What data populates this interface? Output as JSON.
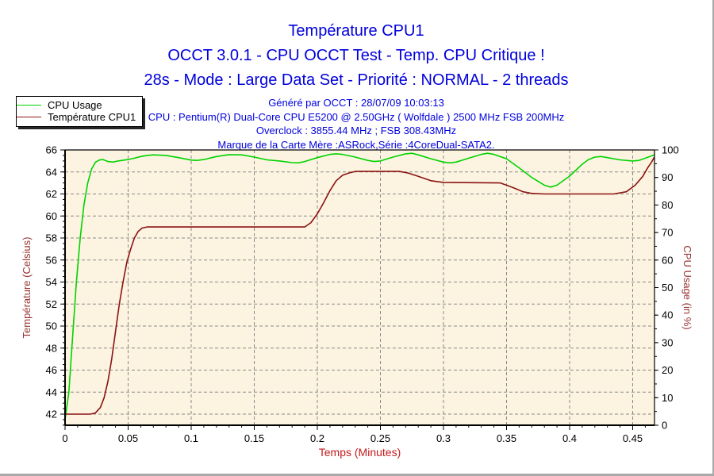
{
  "window": {
    "edge_color": "#a9a9a9",
    "background": "#ffffff"
  },
  "titles": {
    "line1": "Température CPU1",
    "line2": "OCCT 3.0.1 - CPU OCCT Test - Temp. CPU Critique !",
    "line3": "28s - Mode : Large Data Set - Priorité : NORMAL - 2 threads",
    "color": "#0000dd"
  },
  "info": {
    "generated": "Généré par OCCT : 28/07/09 10:03:13",
    "cpu": "CPU : Pentium(R) Dual-Core CPU E5200 @ 2.50GHz ( Wolfdale ) 2500 MHz FSB 200MHz",
    "overclock": "Overclock : 3855.44 MHz ; FSB 308.43MHz",
    "motherboard": "Marque de la Carte Mère :ASRock,Série :4CoreDual-SATA2.",
    "color": "#0000dd"
  },
  "legend": {
    "items": [
      {
        "label": "CPU Usage",
        "color": "#00d300"
      },
      {
        "label": "Température CPU1",
        "color": "#8b1212"
      }
    ]
  },
  "chart_data": {
    "type": "line",
    "title": "Température CPU1",
    "xlabel": "Temps (Minutes)",
    "xlabel_color": "#c41a1a",
    "ylabel_left": "Température (Celsius)",
    "ylabel_right": "CPU Usage (in %)",
    "ylabel_color": "#993333",
    "plot_bg": "#fcf4e0",
    "grid_color": "#8a8a8a",
    "border_color": "#000000",
    "tick_label_color": "#000000",
    "x_range": [
      0,
      0.4673
    ],
    "x_ticks": [
      0,
      0.05,
      0.1,
      0.15,
      0.2,
      0.25,
      0.3,
      0.35,
      0.4,
      0.45
    ],
    "x_tick_labels": [
      "0",
      "0.05",
      "0.1",
      "0.15",
      "0.2",
      "0.25",
      "0.3",
      "0.35",
      "0.4",
      "0.45"
    ],
    "x_minor_step": 0.01,
    "left_axis": {
      "min": 42,
      "max": 66,
      "ticks": [
        42,
        44,
        46,
        48,
        50,
        52,
        54,
        56,
        58,
        60,
        62,
        64,
        66
      ],
      "minor_step": 0.5
    },
    "right_axis": {
      "min": 0,
      "max": 100,
      "ticks": [
        0,
        10,
        20,
        30,
        40,
        50,
        60,
        70,
        80,
        90,
        100
      ],
      "minor_step": 5
    },
    "grid": true,
    "legend_position": "top-left",
    "series": [
      {
        "name": "CPU Usage",
        "axis": "right",
        "color": "#00d300",
        "points": [
          [
            0,
            2
          ],
          [
            0.003,
            12
          ],
          [
            0.006,
            32
          ],
          [
            0.009,
            52
          ],
          [
            0.012,
            68
          ],
          [
            0.015,
            80
          ],
          [
            0.018,
            88
          ],
          [
            0.021,
            93
          ],
          [
            0.024,
            95.5
          ],
          [
            0.027,
            96.3
          ],
          [
            0.03,
            96.5
          ],
          [
            0.034,
            95.8
          ],
          [
            0.038,
            95.6
          ],
          [
            0.042,
            96
          ],
          [
            0.05,
            96.5
          ],
          [
            0.055,
            97
          ],
          [
            0.06,
            97.6
          ],
          [
            0.065,
            98
          ],
          [
            0.07,
            98.2
          ],
          [
            0.08,
            98
          ],
          [
            0.09,
            97.2
          ],
          [
            0.1,
            96.3
          ],
          [
            0.105,
            96.2
          ],
          [
            0.11,
            96.5
          ],
          [
            0.12,
            97.6
          ],
          [
            0.13,
            98.3
          ],
          [
            0.14,
            98.2
          ],
          [
            0.15,
            97.4
          ],
          [
            0.16,
            96.4
          ],
          [
            0.17,
            96
          ],
          [
            0.18,
            95.4
          ],
          [
            0.185,
            95.3
          ],
          [
            0.19,
            95.8
          ],
          [
            0.2,
            97.2
          ],
          [
            0.21,
            98.4
          ],
          [
            0.215,
            98.6
          ],
          [
            0.22,
            98.4
          ],
          [
            0.23,
            97.4
          ],
          [
            0.24,
            96.2
          ],
          [
            0.245,
            95.8
          ],
          [
            0.25,
            96
          ],
          [
            0.26,
            97.4
          ],
          [
            0.27,
            98.6
          ],
          [
            0.275,
            98.8
          ],
          [
            0.28,
            98.2
          ],
          [
            0.29,
            96.8
          ],
          [
            0.3,
            95.6
          ],
          [
            0.305,
            95.3
          ],
          [
            0.31,
            95.6
          ],
          [
            0.32,
            97
          ],
          [
            0.33,
            98.4
          ],
          [
            0.335,
            98.8
          ],
          [
            0.34,
            98.4
          ],
          [
            0.35,
            96.8
          ],
          [
            0.36,
            93.5
          ],
          [
            0.37,
            90
          ],
          [
            0.38,
            87.2
          ],
          [
            0.385,
            86.5
          ],
          [
            0.39,
            87.2
          ],
          [
            0.4,
            90.5
          ],
          [
            0.41,
            94.8
          ],
          [
            0.415,
            96.5
          ],
          [
            0.42,
            97.4
          ],
          [
            0.425,
            97.6
          ],
          [
            0.43,
            97.2
          ],
          [
            0.44,
            96.4
          ],
          [
            0.45,
            96
          ],
          [
            0.455,
            96.2
          ],
          [
            0.46,
            97
          ],
          [
            0.467,
            98.2
          ]
        ]
      },
      {
        "name": "Température CPU1",
        "axis": "left",
        "color": "#8b1212",
        "points": [
          [
            0,
            42
          ],
          [
            0.02,
            42
          ],
          [
            0.024,
            42.1
          ],
          [
            0.028,
            42.6
          ],
          [
            0.031,
            43.5
          ],
          [
            0.034,
            45
          ],
          [
            0.037,
            47
          ],
          [
            0.04,
            49.5
          ],
          [
            0.043,
            52
          ],
          [
            0.046,
            54
          ],
          [
            0.049,
            55.8
          ],
          [
            0.052,
            57
          ],
          [
            0.055,
            58
          ],
          [
            0.058,
            58.6
          ],
          [
            0.061,
            58.9
          ],
          [
            0.065,
            59
          ],
          [
            0.19,
            59
          ],
          [
            0.195,
            59.4
          ],
          [
            0.2,
            60.2
          ],
          [
            0.205,
            61.2
          ],
          [
            0.21,
            62.3
          ],
          [
            0.215,
            63.2
          ],
          [
            0.22,
            63.7
          ],
          [
            0.225,
            63.9
          ],
          [
            0.23,
            64.05
          ],
          [
            0.265,
            64.05
          ],
          [
            0.272,
            63.9
          ],
          [
            0.28,
            63.6
          ],
          [
            0.29,
            63.2
          ],
          [
            0.3,
            63.05
          ],
          [
            0.345,
            63
          ],
          [
            0.35,
            62.8
          ],
          [
            0.357,
            62.5
          ],
          [
            0.363,
            62.2
          ],
          [
            0.37,
            62.05
          ],
          [
            0.38,
            62
          ],
          [
            0.435,
            62
          ],
          [
            0.445,
            62.2
          ],
          [
            0.452,
            62.8
          ],
          [
            0.458,
            63.6
          ],
          [
            0.462,
            64.4
          ],
          [
            0.465,
            64.9
          ],
          [
            0.467,
            65.3
          ]
        ]
      }
    ]
  }
}
